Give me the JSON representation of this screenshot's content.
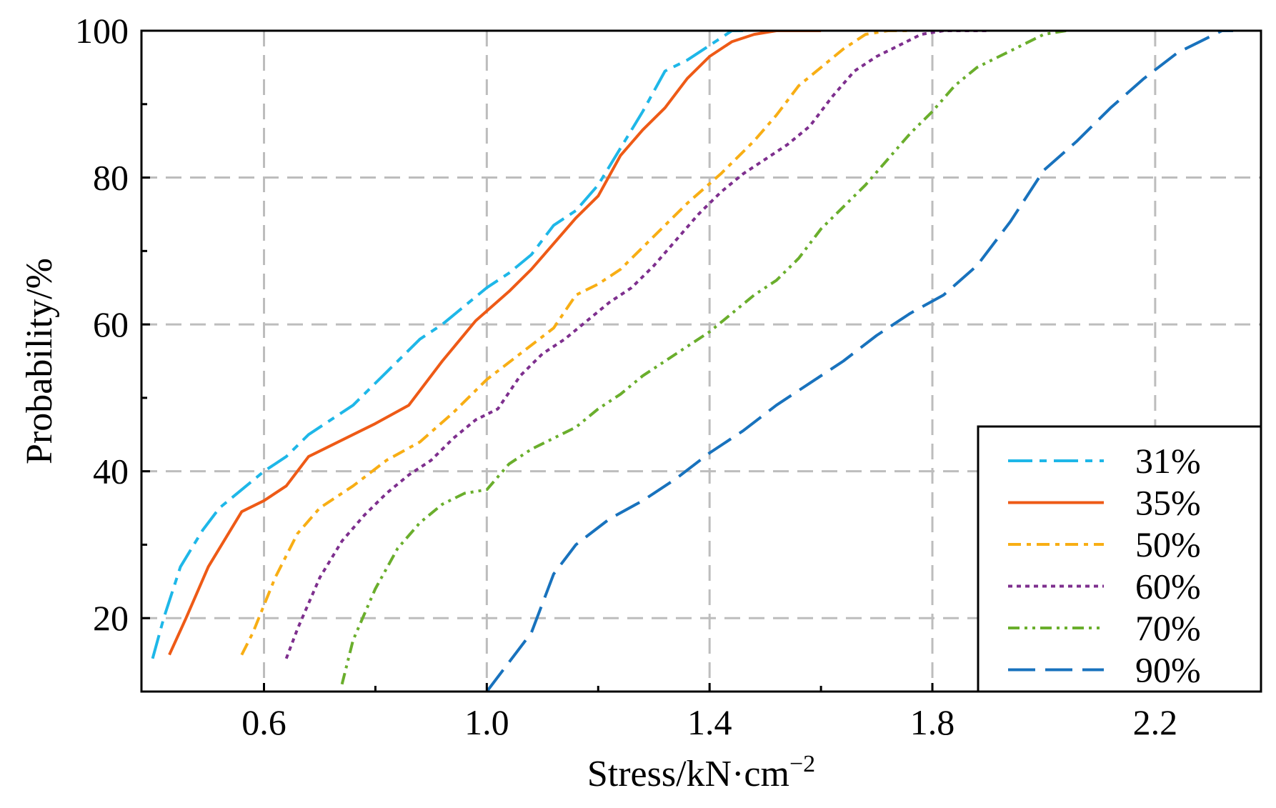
{
  "chart_data": {
    "type": "line",
    "xlabel": "Stress/kN·cm",
    "xlabel_superscript": "−2",
    "ylabel": "Probability/%",
    "xlim": [
      0.38,
      2.39
    ],
    "ylim": [
      10,
      100
    ],
    "x_ticks": [
      0.6,
      1.0,
      1.4,
      1.8,
      2.2
    ],
    "x_tick_labels": [
      "0.6",
      "1.0",
      "1.4",
      "1.8",
      "2.2"
    ],
    "y_ticks": [
      20,
      40,
      60,
      80,
      100
    ],
    "y_tick_labels": [
      "20",
      "40",
      "60",
      "80",
      "100"
    ],
    "grid": true,
    "legend_position": "bottom-right",
    "series": [
      {
        "name": "31%",
        "color": "#1EB7E8",
        "dash": "dashdot-long",
        "x": [
          0.4,
          0.42,
          0.45,
          0.49,
          0.52,
          0.56,
          0.6,
          0.64,
          0.68,
          0.72,
          0.76,
          0.82,
          0.88,
          0.92,
          0.96,
          1.0,
          1.04,
          1.08,
          1.12,
          1.16,
          1.2,
          1.24,
          1.28,
          1.32,
          1.36,
          1.4,
          1.44,
          1.46
        ],
        "y": [
          14.5,
          20,
          27,
          32,
          35,
          37.5,
          40,
          42,
          45,
          47,
          49,
          53.5,
          58,
          60,
          62.5,
          65,
          67,
          69.5,
          73.5,
          75.5,
          79,
          84,
          89,
          94.5,
          96,
          98,
          100,
          100
        ]
      },
      {
        "name": "35%",
        "color": "#EE5A16",
        "dash": "solid",
        "x": [
          0.43,
          0.46,
          0.5,
          0.56,
          0.6,
          0.64,
          0.68,
          0.72,
          0.76,
          0.8,
          0.86,
          0.92,
          0.98,
          1.04,
          1.08,
          1.12,
          1.16,
          1.2,
          1.24,
          1.28,
          1.32,
          1.36,
          1.4,
          1.44,
          1.48,
          1.52,
          1.56,
          1.6
        ],
        "y": [
          15,
          20,
          27,
          34.5,
          36,
          38,
          42,
          43.5,
          45,
          46.5,
          49,
          55,
          60.5,
          64.5,
          67.5,
          71,
          74.5,
          77.5,
          83,
          86.5,
          89.5,
          93.5,
          96.5,
          98.5,
          99.5,
          100,
          100,
          100
        ]
      },
      {
        "name": "50%",
        "color": "#F8AE14",
        "dash": "dashdot",
        "x": [
          0.56,
          0.58,
          0.62,
          0.66,
          0.7,
          0.76,
          0.82,
          0.88,
          0.94,
          1.0,
          1.06,
          1.12,
          1.16,
          1.2,
          1.24,
          1.3,
          1.36,
          1.42,
          1.48,
          1.52,
          1.56,
          1.6,
          1.64,
          1.68,
          1.72,
          1.76
        ],
        "y": [
          15,
          18,
          25.5,
          31.5,
          35,
          38,
          41.5,
          44,
          48,
          52.5,
          56,
          59.5,
          64,
          65.5,
          67.5,
          72,
          76.5,
          80.5,
          85,
          88.5,
          92.5,
          95,
          97.5,
          99.5,
          100,
          100
        ]
      },
      {
        "name": "60%",
        "color": "#7E2F8E",
        "dash": "dotted",
        "x": [
          0.64,
          0.66,
          0.7,
          0.74,
          0.78,
          0.82,
          0.86,
          0.9,
          0.94,
          0.98,
          1.02,
          1.06,
          1.1,
          1.14,
          1.18,
          1.22,
          1.26,
          1.3,
          1.34,
          1.38,
          1.42,
          1.46,
          1.5,
          1.54,
          1.58,
          1.62,
          1.66,
          1.7,
          1.74,
          1.78,
          1.82,
          1.86,
          1.9
        ],
        "y": [
          14.5,
          18.5,
          25.5,
          30.5,
          34,
          37,
          39.5,
          41.5,
          44.5,
          47,
          48.5,
          53,
          56,
          58,
          60.5,
          63,
          65,
          68,
          71.5,
          75,
          78,
          80.5,
          82.5,
          84.5,
          87,
          91,
          94.5,
          96.5,
          98,
          99.5,
          100,
          100,
          100
        ]
      },
      {
        "name": "70%",
        "color": "#6AAE2C",
        "dash": "dash-dot-dot",
        "x": [
          0.74,
          0.76,
          0.8,
          0.84,
          0.88,
          0.92,
          0.96,
          1.0,
          1.04,
          1.08,
          1.12,
          1.16,
          1.2,
          1.24,
          1.28,
          1.32,
          1.36,
          1.4,
          1.44,
          1.48,
          1.52,
          1.56,
          1.6,
          1.64,
          1.68,
          1.72,
          1.76,
          1.8,
          1.84,
          1.88,
          1.92,
          1.96,
          2.0,
          2.04
        ],
        "y": [
          11,
          17,
          24,
          29.5,
          33,
          35.5,
          37,
          37.5,
          41,
          43,
          44.5,
          46,
          48.5,
          50.5,
          53,
          55,
          57,
          59,
          61.5,
          64,
          66,
          69,
          73,
          76,
          79,
          82.5,
          86,
          89,
          92.5,
          95,
          96.5,
          98,
          99.5,
          100
        ]
      },
      {
        "name": "90%",
        "color": "#1872BD",
        "dash": "long-dash",
        "x": [
          1.0,
          1.04,
          1.08,
          1.12,
          1.16,
          1.22,
          1.28,
          1.34,
          1.4,
          1.46,
          1.52,
          1.58,
          1.64,
          1.7,
          1.76,
          1.82,
          1.88,
          1.94,
          2.0,
          2.06,
          2.12,
          2.18,
          2.24,
          2.28,
          2.32,
          2.34
        ],
        "y": [
          10,
          14,
          18,
          26,
          30,
          33.5,
          36,
          39,
          42.5,
          45.5,
          49,
          52,
          55,
          58.5,
          61.5,
          64,
          68,
          74,
          81,
          85,
          89.5,
          93.5,
          97,
          98.5,
          100,
          100
        ]
      }
    ]
  }
}
